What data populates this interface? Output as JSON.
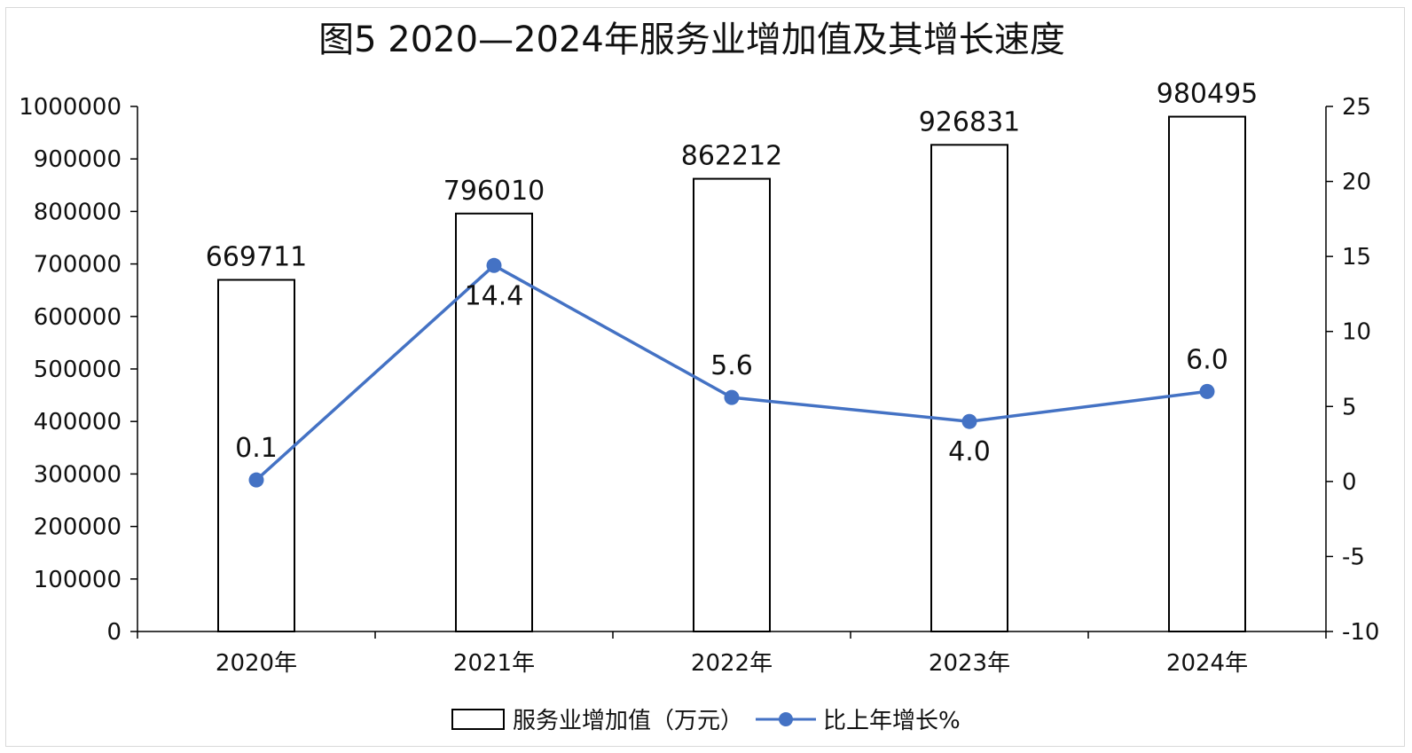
{
  "chart_data": {
    "type": "bar",
    "title": "图5   2020—2024年服务业增加值及其增长速度",
    "categories": [
      "2020年",
      "2021年",
      "2022年",
      "2023年",
      "2024年"
    ],
    "series": [
      {
        "name": "服务业增加值（万元）",
        "type": "bar",
        "axis": "left",
        "values": [
          669711,
          796010,
          862212,
          926831,
          980495
        ],
        "labels": [
          "669711",
          "796010",
          "862212",
          "926831",
          "980495"
        ]
      },
      {
        "name": "比上年增长%",
        "type": "line",
        "axis": "right",
        "values": [
          0.1,
          14.4,
          5.6,
          4.0,
          6.0
        ],
        "labels": [
          "0.1",
          "14.4",
          "5.6",
          "4.0",
          "6.0"
        ]
      }
    ],
    "y_left": {
      "range": [
        0,
        1000000
      ],
      "ticks": [
        "0",
        "100000",
        "200000",
        "300000",
        "400000",
        "500000",
        "600000",
        "700000",
        "800000",
        "900000",
        "1000000"
      ]
    },
    "y_right": {
      "range": [
        -10,
        25
      ],
      "ticks": [
        "-10",
        "-5",
        "0",
        "5",
        "10",
        "15",
        "20",
        "25"
      ]
    },
    "grid": false,
    "legend_position": "bottom",
    "colors": {
      "bar_fill": "#ffffff",
      "bar_stroke": "#000000",
      "line": "#4472c4"
    }
  }
}
